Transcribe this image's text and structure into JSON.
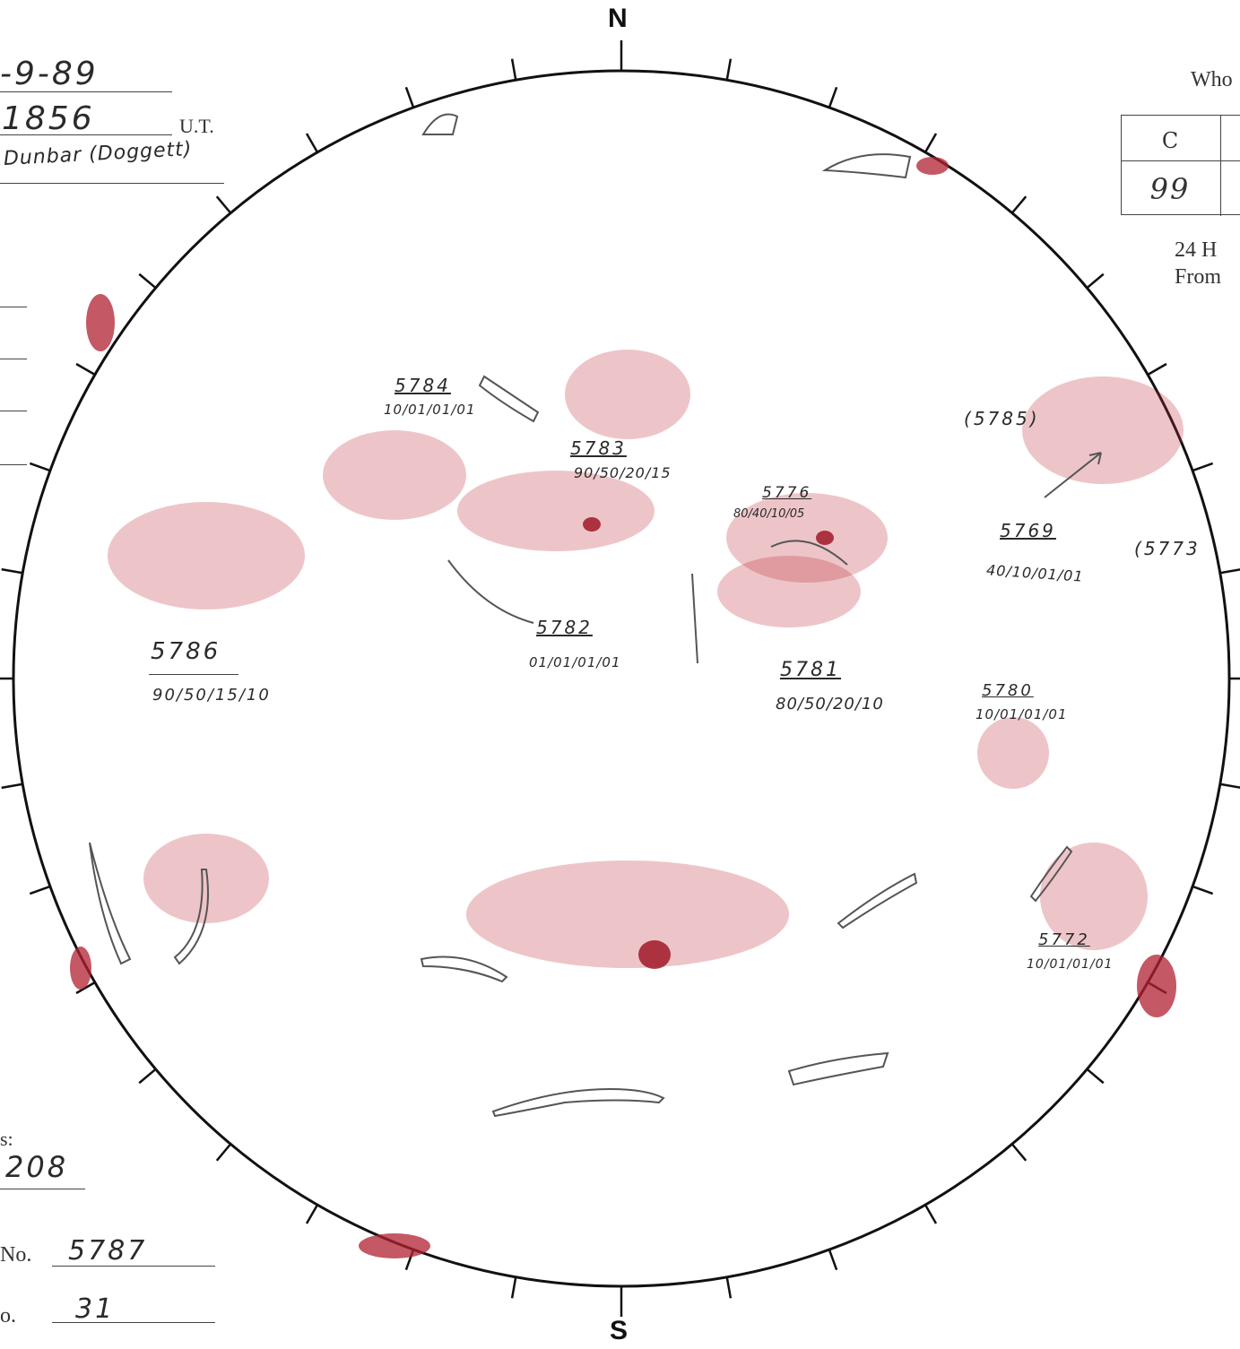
{
  "header": {
    "date_value": "-9-89",
    "time_value": "1856",
    "time_unit": "U.T.",
    "observer_value": "Dunbar (Doggett)"
  },
  "table": {
    "title": "Who",
    "col_header": "C",
    "col_value": "99"
  },
  "note": {
    "line1": "24 H",
    "line2": "From"
  },
  "compass": {
    "north": "N",
    "south": "S"
  },
  "footer": {
    "count_label": "s:",
    "count_value": "208",
    "no_label": "No.",
    "no_value": "5787",
    "o_label": "o.",
    "o_value": "31"
  },
  "regions": [
    {
      "id": "5784",
      "code": "10/01/01/01",
      "paren": false
    },
    {
      "id": "5783",
      "code": "90/50/20/15",
      "paren": false
    },
    {
      "id": "5776",
      "code": "80/40/10/05",
      "paren": false
    },
    {
      "id": "5785",
      "code": "",
      "paren": true
    },
    {
      "id": "5769",
      "code": "40/10/01/01",
      "paren": false
    },
    {
      "id": "5773",
      "code": "",
      "paren": true
    },
    {
      "id": "5786",
      "code": "90/50/15/10",
      "paren": false
    },
    {
      "id": "5782",
      "code": "01/01/01/01",
      "paren": false
    },
    {
      "id": "5781",
      "code": "80/50/20/10",
      "paren": false
    },
    {
      "id": "5780",
      "code": "10/01/01/01",
      "paren": false
    },
    {
      "id": "5772",
      "code": "10/01/01/01",
      "paren": false
    }
  ],
  "colors": {
    "spot_red": "#c0303a",
    "pencil": "#555555",
    "ink": "#1a1a1a"
  }
}
